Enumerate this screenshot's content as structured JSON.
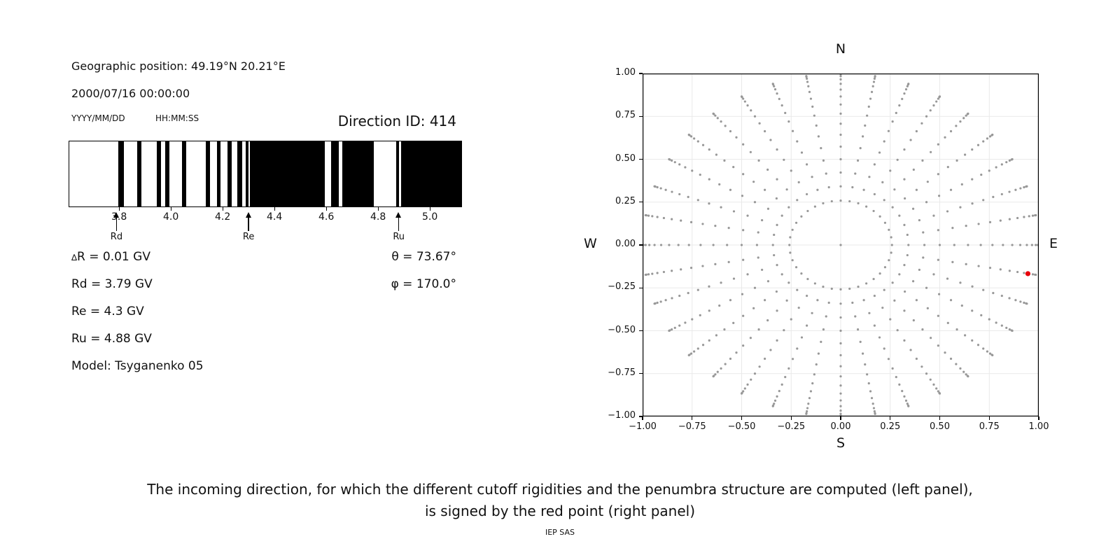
{
  "left_panel": {
    "geo_position": "Geographic position: 49.19°N 20.21°E",
    "datetime": "2000/07/16 00:00:00",
    "date_format_label": "YYYY/MM/DD",
    "time_format_label": "HH:MM:SS",
    "parameters": {
      "delta_sym": "∆",
      "delta_rest": "R = 0.01 GV",
      "rd": "Rd = 3.79 GV",
      "re": "Re = 4.3 GV",
      "ru": "Ru = 4.88 GV",
      "model": "Model: Tsyganenko 05",
      "theta": "θ = 73.67°",
      "phi": "φ = 170.0°"
    }
  },
  "caption": {
    "line1": "The incoming direction, for which the different cutoff rigidities and the penumbra structure are computed (left panel),",
    "line2": "is signed by the red point (right panel)",
    "credit": "IEP SAS"
  },
  "colors": {
    "band": "#000000",
    "dot": "#989898",
    "red_point": "#e8000b",
    "grid": "#e9e9e9",
    "spine": "#000000"
  },
  "chart_data": [
    {
      "type": "bar",
      "title": "Direction ID: 414",
      "x_unit": "GV",
      "x_range": [
        3.605,
        5.124
      ],
      "x_ticks": [
        {
          "v": 3.8,
          "label": "3.8"
        },
        {
          "v": 4.0,
          "label": "4.0"
        },
        {
          "v": 4.2,
          "label": "4.2"
        },
        {
          "v": 4.4,
          "label": "4.4"
        },
        {
          "v": 4.6,
          "label": "4.6"
        },
        {
          "v": 4.8,
          "label": "4.8"
        },
        {
          "v": 5.0,
          "label": "5.0"
        }
      ],
      "black_bands_gv": [
        [
          3.795,
          3.816
        ],
        [
          3.868,
          3.884
        ],
        [
          3.942,
          3.958
        ],
        [
          3.976,
          3.992
        ],
        [
          4.04,
          4.056
        ],
        [
          4.133,
          4.149
        ],
        [
          4.174,
          4.19
        ],
        [
          4.215,
          4.232
        ],
        [
          4.255,
          4.272
        ],
        [
          4.286,
          4.298
        ],
        [
          4.302,
          4.591
        ],
        [
          4.617,
          4.645
        ],
        [
          4.658,
          4.781
        ],
        [
          4.866,
          4.878
        ],
        [
          4.887,
          5.124
        ]
      ],
      "cutoff_markers": [
        {
          "label": "Rd",
          "value_gv": 3.79
        },
        {
          "label": "Re",
          "value_gv": 4.3
        },
        {
          "label": "Ru",
          "value_gv": 4.88
        }
      ]
    },
    {
      "type": "scatter",
      "compass": {
        "n": "N",
        "e": "E",
        "s": "S",
        "w": "W"
      },
      "xlim": [
        -1,
        1
      ],
      "ylim": [
        -1,
        1
      ],
      "grid": true,
      "ticks": [
        {
          "v": -1.0,
          "label": "−1.00"
        },
        {
          "v": -0.75,
          "label": "−0.75"
        },
        {
          "v": -0.5,
          "label": "−0.50"
        },
        {
          "v": -0.25,
          "label": "−0.25"
        },
        {
          "v": 0.0,
          "label": "0.00"
        },
        {
          "v": 0.25,
          "label": "0.25"
        },
        {
          "v": 0.5,
          "label": "0.50"
        },
        {
          "v": 0.75,
          "label": "0.75"
        },
        {
          "v": 1.0,
          "label": "1.00"
        }
      ],
      "spokes": {
        "azimuth_deg": [
          0,
          10,
          20,
          30,
          40,
          50,
          60,
          70,
          80,
          90,
          100,
          110,
          120,
          130,
          140,
          150,
          160,
          170,
          180,
          190,
          200,
          210,
          220,
          230,
          240,
          250,
          260,
          270,
          280,
          290,
          300,
          310,
          320,
          330,
          340,
          350
        ],
        "zenith_deg": [
          15,
          20,
          25,
          30,
          35,
          40,
          45,
          50,
          55,
          60,
          65,
          70,
          75,
          80,
          85,
          90
        ],
        "radius_rule": "sin(zenith)"
      },
      "center_point": {
        "x": 0,
        "y": 0
      },
      "red_point": {
        "x": 0.945,
        "y": -0.167,
        "theta_deg": 73.67,
        "phi_deg": 170.0
      }
    }
  ]
}
